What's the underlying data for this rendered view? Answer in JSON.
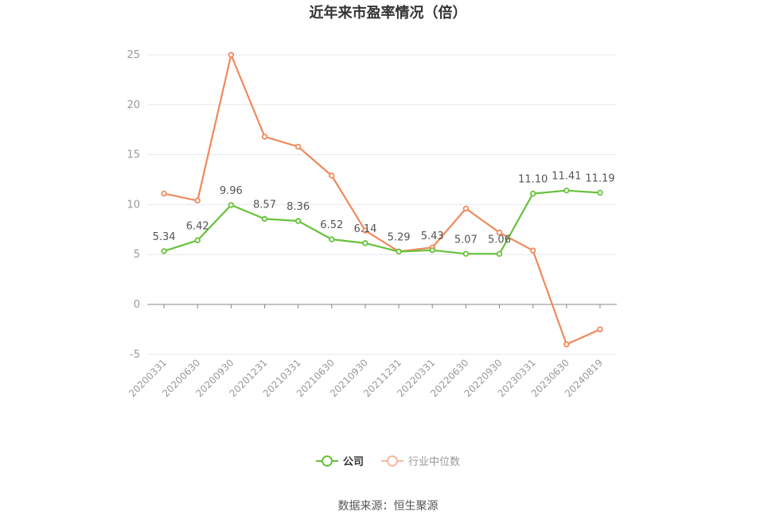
{
  "title": "近年来市盈率情况（倍）",
  "source": "数据来源：恒生聚源",
  "legend": {
    "series_a": "公司",
    "series_b": "行业中位数"
  },
  "colors": {
    "series_a": "#67c23a",
    "series_b": "#f0895c",
    "grid": "#e6e8f0",
    "axis": "#888888",
    "tick_text": "#999999",
    "label_text": "#555555"
  },
  "chart_data": {
    "type": "line",
    "title": "近年来市盈率情况（倍）",
    "categories": [
      "20200331",
      "20200630",
      "20200930",
      "20201231",
      "20210331",
      "20210630",
      "20210930",
      "20211231",
      "20220331",
      "20220630",
      "20220930",
      "20230331",
      "20230630",
      "20240819"
    ],
    "y_ticks": [
      -5,
      0,
      5,
      10,
      15,
      20,
      25
    ],
    "ylim": [
      -5,
      25
    ],
    "grid": true,
    "legend_position": "bottom",
    "series": [
      {
        "name": "公司",
        "values": [
          5.34,
          6.42,
          9.96,
          8.57,
          8.36,
          6.52,
          6.14,
          5.29,
          5.43,
          5.07,
          5.06,
          11.1,
          11.41,
          11.19
        ],
        "labels": [
          "5.34",
          "6.42",
          "9.96",
          "8.57",
          "8.36",
          "6.52",
          "6.14",
          "5.29",
          "5.43",
          "5.07",
          "5.06",
          "11.10",
          "11.41",
          "11.19"
        ]
      },
      {
        "name": "行业中位数",
        "values": [
          11.1,
          10.4,
          25.0,
          16.8,
          15.8,
          12.9,
          7.4,
          5.3,
          5.7,
          9.6,
          7.2,
          5.4,
          -4.0,
          -2.5
        ]
      }
    ]
  }
}
